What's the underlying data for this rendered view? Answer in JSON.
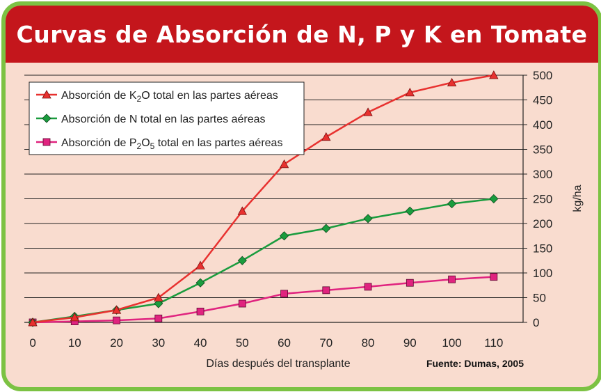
{
  "title": "Curvas de Absorción de N, P y K en Tomate",
  "source": "Fuente: Dumas, 2005",
  "chart_data": {
    "type": "line",
    "x": [
      0,
      10,
      20,
      30,
      40,
      50,
      60,
      70,
      80,
      90,
      100,
      110
    ],
    "xlabel": "Días después del transplante",
    "ylabel": "kg/ha",
    "xlim": [
      0,
      110
    ],
    "ylim": [
      0,
      500
    ],
    "ytick_step": 50,
    "grid": "horizontal",
    "yaxis_side": "right",
    "legend_position": "top-left",
    "series": [
      {
        "name": "Absorción de K₂O total en las partes aéreas",
        "legend": {
          "pre": "Absorción de K",
          "sub": "2",
          "post": "O total en las partes aéreas"
        },
        "color": "#e8312f",
        "marker": "triangle",
        "values": [
          0,
          10,
          25,
          50,
          115,
          225,
          320,
          375,
          425,
          465,
          485,
          500
        ]
      },
      {
        "name": "Absorción de N total en las partes aéreas",
        "legend": {
          "pre": "Absorción de N total en las partes aéreas"
        },
        "color": "#1a9c3e",
        "marker": "diamond",
        "values": [
          0,
          12,
          25,
          38,
          80,
          125,
          175,
          190,
          210,
          225,
          240,
          250
        ]
      },
      {
        "name": "Absorción de P₂O₅ total en las partes aéreas",
        "legend": {
          "pre": "Absorción de P",
          "sub": "2",
          "mid": "O",
          "sub2": "5",
          "post": " total en las partes aéreas"
        },
        "color": "#e0237f",
        "marker": "square",
        "values": [
          0,
          2,
          4,
          8,
          22,
          38,
          58,
          65,
          72,
          80,
          87,
          92
        ]
      }
    ]
  }
}
